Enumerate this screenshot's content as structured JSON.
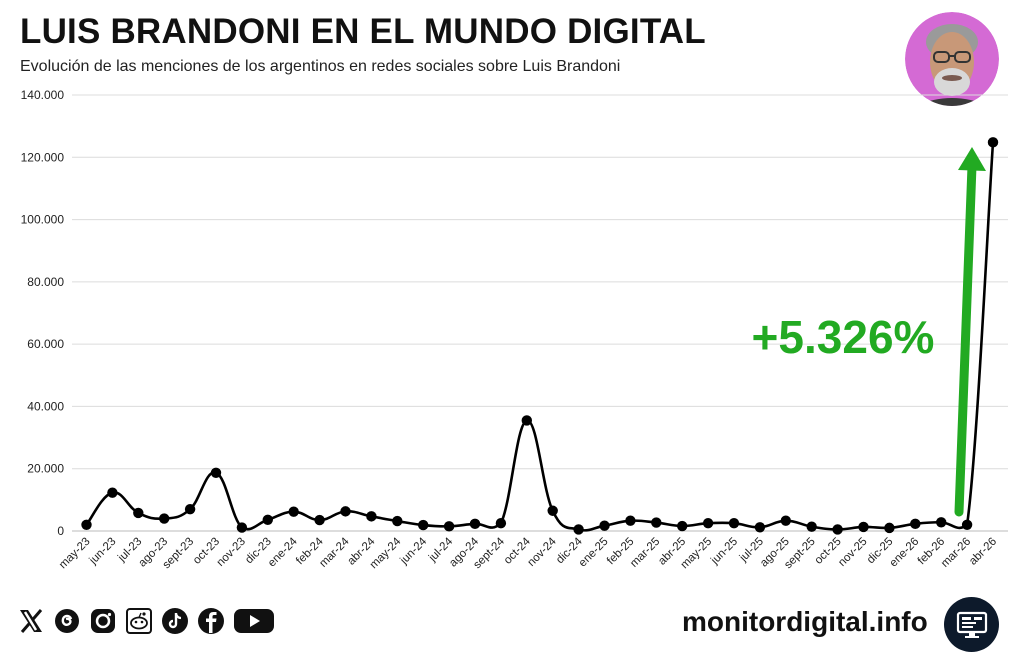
{
  "header": {
    "title": "LUIS BRANDONI EN EL MUNDO DIGITAL",
    "subtitle": "Evolución de las menciones de los argentinos en redes sociales sobre Luis Brandoni"
  },
  "annotation": {
    "text": "+5.326%",
    "color": "#22aa22"
  },
  "footer": {
    "brand": "monitordigital.info",
    "social_icons": [
      "x-icon",
      "threads-icon",
      "instagram-icon",
      "reddit-icon",
      "tiktok-icon",
      "facebook-icon",
      "youtube-icon"
    ]
  },
  "chart_data": {
    "type": "line",
    "categories": [
      "may-23",
      "jun-23",
      "jul-23",
      "ago-23",
      "sept-23",
      "oct-23",
      "nov-23",
      "dic-23",
      "ene-24",
      "feb-24",
      "mar-24",
      "abr-24",
      "may-24",
      "jun-24",
      "jul-24",
      "ago-24",
      "sept-24",
      "oct-24",
      "nov-24",
      "dic-24",
      "ene-25",
      "feb-25",
      "mar-25",
      "abr-25",
      "may-25",
      "jun-25",
      "jul-25",
      "ago-25",
      "sept-25",
      "oct-25",
      "nov-25",
      "dic-25",
      "ene-26",
      "feb-26",
      "mar-26",
      "abr-26"
    ],
    "series": [
      {
        "values": [
          2000,
          12300,
          5800,
          4000,
          7000,
          18700,
          1100,
          3600,
          6200,
          3500,
          6300,
          4700,
          3200,
          1900,
          1500,
          2300,
          2500,
          35500,
          6500,
          500,
          1700,
          3300,
          2700,
          1600,
          2500,
          2500,
          1200,
          3300,
          1400,
          500,
          1300,
          1000,
          2300,
          2800,
          2000,
          124800
        ]
      }
    ],
    "y_ticks": [
      "0",
      "20.000",
      "40.000",
      "60.000",
      "80.000",
      "100.000",
      "120.000",
      "140.000"
    ],
    "ylim": [
      0,
      140000
    ],
    "grid": true,
    "line_color": "#000000"
  }
}
